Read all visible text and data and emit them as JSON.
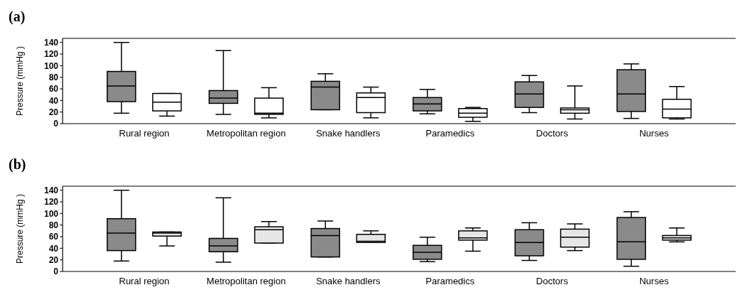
{
  "chart_data": [
    {
      "type": "box",
      "title": "(a)",
      "ylabel": "Pressure  (mmHg )",
      "categories": [
        "Rural region",
        "Metropolitan region",
        "Snake handlers",
        "Paramedics",
        "Doctors",
        "Nurses"
      ],
      "ylim": [
        0,
        147
      ],
      "yticks": [
        0,
        20,
        40,
        60,
        80,
        100,
        120,
        140
      ],
      "series": [
        {
          "color": "#8a8a8a",
          "boxes": [
            {
              "low": 18,
              "q1": 38,
              "median": 65,
              "q3": 90,
              "high": 140
            },
            {
              "low": 16,
              "q1": 35,
              "median": 44,
              "q3": 57,
              "high": 126
            },
            {
              "low": 24,
              "q1": 24,
              "median": 63,
              "q3": 73,
              "high": 86
            },
            {
              "low": 17,
              "q1": 22,
              "median": 34,
              "q3": 45,
              "high": 59
            },
            {
              "low": 19,
              "q1": 28,
              "median": 51,
              "q3": 72,
              "high": 83
            },
            {
              "low": 9,
              "q1": 21,
              "median": 51,
              "q3": 93,
              "high": 103
            }
          ]
        },
        {
          "color": "#ffffff",
          "boxes": [
            {
              "low": 13,
              "q1": 22,
              "median": 37,
              "q3": 52,
              "high": 52
            },
            {
              "low": 10,
              "q1": 16,
              "median": 18,
              "q3": 44,
              "high": 62
            },
            {
              "low": 10,
              "q1": 19,
              "median": 45,
              "q3": 53,
              "high": 63
            },
            {
              "low": 4,
              "q1": 11,
              "median": 18,
              "q3": 26,
              "high": 28
            },
            {
              "low": 8,
              "q1": 18,
              "median": 24,
              "q3": 27,
              "high": 65
            },
            {
              "low": 8,
              "q1": 10,
              "median": 25,
              "q3": 42,
              "high": 64
            }
          ]
        }
      ]
    },
    {
      "type": "box",
      "title": "(b)",
      "ylabel": "Pressure  (mmHg )",
      "categories": [
        "Rural region",
        "Metropolitan region",
        "Snake handlers",
        "Paramedics",
        "Doctors",
        "Nurses"
      ],
      "ylim": [
        0,
        147
      ],
      "yticks": [
        0,
        20,
        40,
        60,
        80,
        100,
        120,
        140
      ],
      "series": [
        {
          "color": "#8a8a8a",
          "boxes": [
            {
              "low": 18,
              "q1": 36,
              "median": 66,
              "q3": 91,
              "high": 140
            },
            {
              "low": 16,
              "q1": 34,
              "median": 44,
              "q3": 57,
              "high": 127
            },
            {
              "low": 25,
              "q1": 25,
              "median": 62,
              "q3": 74,
              "high": 87
            },
            {
              "low": 17,
              "q1": 21,
              "median": 33,
              "q3": 45,
              "high": 59
            },
            {
              "low": 19,
              "q1": 27,
              "median": 50,
              "q3": 72,
              "high": 84
            },
            {
              "low": 9,
              "q1": 21,
              "median": 51,
              "q3": 93,
              "high": 103
            }
          ]
        },
        {
          "color": "#e6e6e6",
          "boxes": [
            {
              "low": 44,
              "q1": 61,
              "median": 66,
              "q3": 68,
              "high": 68
            },
            {
              "low": 49,
              "q1": 49,
              "median": 72,
              "q3": 77,
              "high": 86
            },
            {
              "low": 50,
              "q1": 50,
              "median": 52,
              "q3": 64,
              "high": 70
            },
            {
              "low": 35,
              "q1": 54,
              "median": 58,
              "q3": 70,
              "high": 75
            },
            {
              "low": 36,
              "q1": 42,
              "median": 59,
              "q3": 73,
              "high": 82
            },
            {
              "low": 51,
              "q1": 54,
              "median": 58,
              "q3": 62,
              "high": 75
            }
          ]
        }
      ]
    }
  ]
}
